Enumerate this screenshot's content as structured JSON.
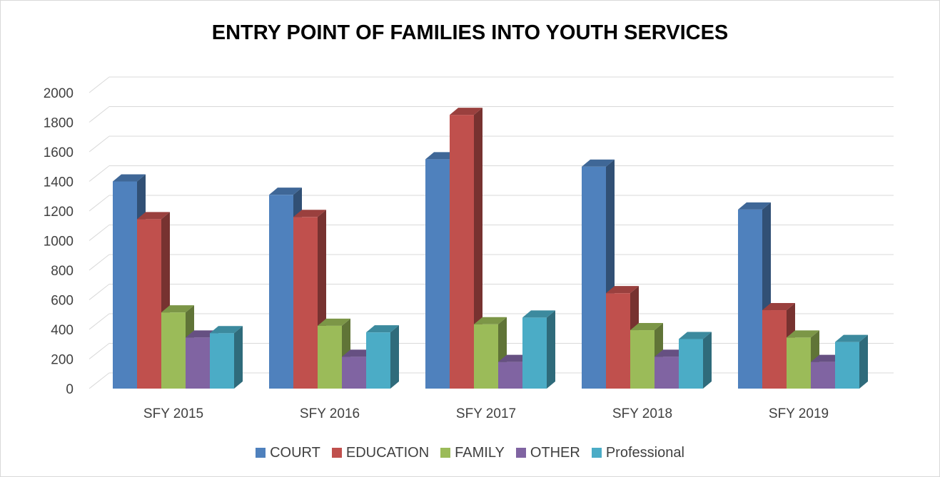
{
  "chart_data": {
    "type": "bar",
    "title": "ENTRY POINT OF FAMILIES INTO YOUTH SERVICES",
    "xlabel": "",
    "ylabel": "",
    "categories": [
      "SFY 2015",
      "SFY 2016",
      "SFY 2017",
      "SFY 2018",
      "SFY 2019"
    ],
    "series": [
      {
        "name": "COURT",
        "color": "#4f81bd",
        "values": [
          1400,
          1310,
          1550,
          1500,
          1210
        ]
      },
      {
        "name": "EDUCATION",
        "color": "#c0504d",
        "values": [
          1145,
          1160,
          1850,
          645,
          530
        ]
      },
      {
        "name": "FAMILY",
        "color": "#9bbb59",
        "values": [
          515,
          425,
          435,
          395,
          345
        ]
      },
      {
        "name": "OTHER",
        "color": "#8064a2",
        "values": [
          345,
          215,
          180,
          215,
          180
        ]
      },
      {
        "name": "Professional",
        "color": "#4bacc6",
        "values": [
          375,
          380,
          480,
          335,
          315
        ]
      }
    ],
    "ylim": [
      0,
      2000
    ],
    "yticks": [
      "0",
      "200",
      "400",
      "600",
      "800",
      "1000",
      "1200",
      "1400",
      "1600",
      "1800",
      "2000"
    ],
    "grid": true,
    "legend_position": "bottom",
    "style": "3d-clustered-column"
  }
}
